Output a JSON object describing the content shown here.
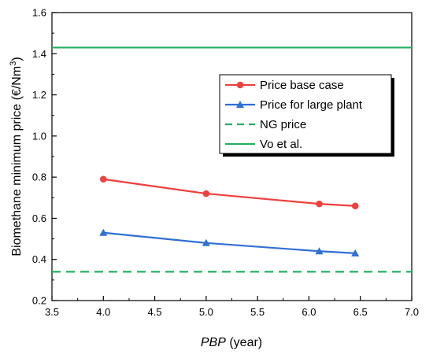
{
  "chart_data": {
    "type": "line",
    "xlabel_italic": "PBP",
    "xlabel_rest": " (year)",
    "ylabel_main": "Biomethane minimum price (€/Nm",
    "ylabel_sup": "3",
    "ylabel_end": ")",
    "xlim": [
      3.5,
      7.0
    ],
    "ylim": [
      0.2,
      1.6
    ],
    "xticks": [
      "3.5",
      "4.0",
      "4.5",
      "5.0",
      "5.5",
      "6.0",
      "6.5",
      "7.0"
    ],
    "yticks": [
      "0.2",
      "0.4",
      "0.6",
      "0.8",
      "1.0",
      "1.2",
      "1.4",
      "1.6"
    ],
    "grid": false,
    "legend_position": "upper-right",
    "series": [
      {
        "name": "Price base case",
        "color": "#f0403c",
        "marker": "circle",
        "style": "solid",
        "x": [
          4.0,
          5.0,
          6.1,
          6.45
        ],
        "values": [
          0.79,
          0.72,
          0.67,
          0.66
        ]
      },
      {
        "name": "Price for large plant",
        "color": "#2f6fd6",
        "marker": "triangle",
        "style": "solid",
        "x": [
          4.0,
          5.0,
          6.1,
          6.45
        ],
        "values": [
          0.53,
          0.48,
          0.44,
          0.43
        ]
      },
      {
        "name": "NG price",
        "color": "#23b062",
        "marker": "none",
        "style": "dashed",
        "x": [
          3.5,
          7.0
        ],
        "values": [
          0.34,
          0.34
        ]
      },
      {
        "name": "Vo et al.",
        "color": "#23b062",
        "marker": "none",
        "style": "solid",
        "x": [
          3.5,
          7.0
        ],
        "values": [
          1.43,
          1.43
        ]
      }
    ]
  }
}
